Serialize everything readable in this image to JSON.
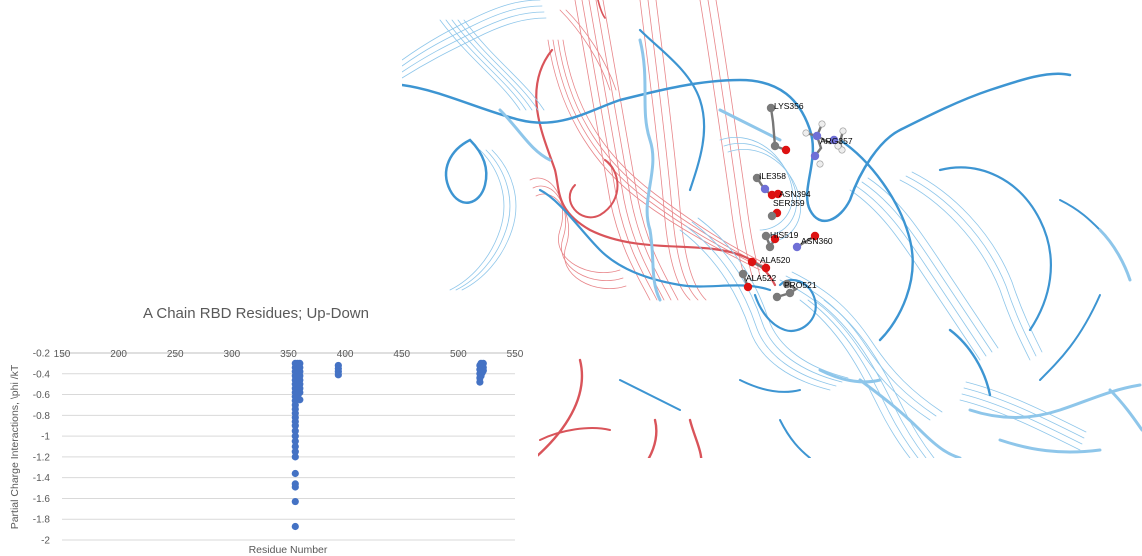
{
  "molecule": {
    "residue_labels": [
      "LYS356",
      "ARG357",
      "ILE358",
      "ASN394",
      "SER359",
      "HIS519",
      "ASN360",
      "ALA520",
      "ALA522",
      "PRO521"
    ],
    "ribbon_colors": {
      "blue": "#3d95d2",
      "blue_light": "#8ec6ea",
      "red": "#d9545a",
      "red_light": "#e8868a"
    },
    "atom_colors": {
      "carbon": "#7a7a7a",
      "oxygen": "#dd1111",
      "nitrogen": "#6f6fd6",
      "hydrogen": "#eeeeee"
    }
  },
  "chart_data": {
    "type": "scatter",
    "title": "A Chain RBD Residues; Up-Down",
    "xlabel": "Residue Number",
    "ylabel": "Partial Charge Interactions, \\phi /kT",
    "xlim": [
      150,
      550
    ],
    "ylim": [
      -2,
      -0.2
    ],
    "x_ticks": [
      "150",
      "200",
      "250",
      "300",
      "350",
      "400",
      "450",
      "500",
      "550"
    ],
    "y_ticks": [
      "-0.2",
      "-0.4",
      "-0.6",
      "-0.8",
      "-1",
      "-1.2",
      "-1.4",
      "-1.6",
      "-1.8",
      "-2"
    ],
    "grid": true,
    "x_axis_position": "top",
    "marker_color": "#4472c4",
    "series": [
      {
        "points": [
          [
            356,
            -0.3
          ],
          [
            356,
            -0.34
          ],
          [
            356,
            -0.38
          ],
          [
            356,
            -0.42
          ],
          [
            356,
            -0.46
          ],
          [
            356,
            -0.5
          ],
          [
            356,
            -0.54
          ],
          [
            356,
            -0.58
          ],
          [
            356,
            -0.62
          ],
          [
            356,
            -0.66
          ],
          [
            356,
            -0.7
          ],
          [
            356,
            -0.74
          ],
          [
            356,
            -0.78
          ],
          [
            356,
            -0.82
          ],
          [
            356,
            -0.86
          ],
          [
            356,
            -0.9
          ],
          [
            356,
            -0.95
          ],
          [
            356,
            -1.0
          ],
          [
            356,
            -1.05
          ],
          [
            356,
            -1.1
          ],
          [
            356,
            -1.15
          ],
          [
            356,
            -1.2
          ],
          [
            356,
            -1.36
          ],
          [
            356,
            -1.46
          ],
          [
            356,
            -1.49
          ],
          [
            356,
            -1.63
          ],
          [
            356,
            -1.87
          ],
          [
            357,
            -0.32
          ],
          [
            357,
            -0.36
          ],
          [
            357,
            -0.4
          ],
          [
            357,
            -0.44
          ],
          [
            357,
            -0.48
          ],
          [
            357,
            -0.52
          ],
          [
            357,
            -0.56
          ],
          [
            357,
            -0.6
          ],
          [
            357,
            -0.64
          ],
          [
            358,
            -0.3
          ],
          [
            358,
            -0.34
          ],
          [
            358,
            -0.38
          ],
          [
            358,
            -0.42
          ],
          [
            358,
            -0.46
          ],
          [
            358,
            -0.5
          ],
          [
            358,
            -0.54
          ],
          [
            358,
            -0.58
          ],
          [
            358,
            -0.62
          ],
          [
            359,
            -0.31
          ],
          [
            359,
            -0.35
          ],
          [
            359,
            -0.39
          ],
          [
            359,
            -0.43
          ],
          [
            359,
            -0.47
          ],
          [
            359,
            -0.51
          ],
          [
            359,
            -0.55
          ],
          [
            359,
            -0.59
          ],
          [
            360,
            -0.3
          ],
          [
            360,
            -0.34
          ],
          [
            360,
            -0.38
          ],
          [
            360,
            -0.42
          ],
          [
            360,
            -0.46
          ],
          [
            360,
            -0.5
          ],
          [
            360,
            -0.54
          ],
          [
            360,
            -0.58
          ],
          [
            360,
            -0.65
          ],
          [
            394,
            -0.32
          ],
          [
            394,
            -0.35
          ],
          [
            394,
            -0.38
          ],
          [
            394,
            -0.41
          ],
          [
            519,
            -0.32
          ],
          [
            519,
            -0.36
          ],
          [
            519,
            -0.4
          ],
          [
            519,
            -0.44
          ],
          [
            519,
            -0.48
          ],
          [
            520,
            -0.3
          ],
          [
            520,
            -0.34
          ],
          [
            520,
            -0.38
          ],
          [
            520,
            -0.42
          ],
          [
            521,
            -0.31
          ],
          [
            521,
            -0.35
          ],
          [
            521,
            -0.39
          ],
          [
            522,
            -0.3
          ],
          [
            522,
            -0.34
          ],
          [
            522,
            -0.37
          ]
        ]
      }
    ]
  }
}
